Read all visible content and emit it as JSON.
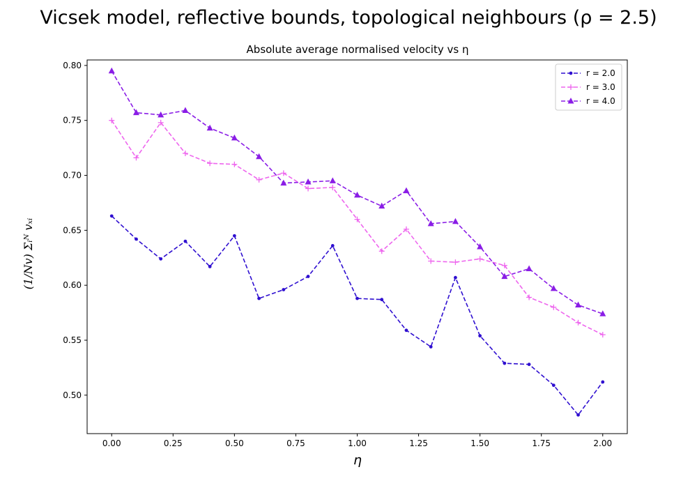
{
  "suptitle": "Vicsek model, reflective bounds, topological neighbours (ρ = 2.5)",
  "chart_data": {
    "type": "line",
    "title": "Absolute average normalised velocity vs η",
    "xlabel": "η",
    "ylabel": "(1/Nv) Σᵢᴺ vₓᵢ",
    "xlim": [
      -0.1,
      2.1
    ],
    "ylim": [
      0.465,
      0.805
    ],
    "xticks": [
      "0.00",
      "0.25",
      "0.50",
      "0.75",
      "1.00",
      "1.25",
      "1.50",
      "1.75",
      "2.00"
    ],
    "yticks": [
      "0.50",
      "0.55",
      "0.60",
      "0.65",
      "0.70",
      "0.75",
      "0.80"
    ],
    "grid": false,
    "legend_position": "top-right",
    "x": [
      0.0,
      0.1,
      0.2,
      0.3,
      0.4,
      0.5,
      0.6,
      0.7,
      0.8,
      0.9,
      1.0,
      1.1,
      1.2,
      1.3,
      1.4,
      1.5,
      1.6,
      1.7,
      1.8,
      1.9,
      2.0
    ],
    "series": [
      {
        "name": "r = 2.0",
        "color": "#2f0fd0",
        "marker": "dot",
        "values": [
          0.663,
          0.642,
          0.624,
          0.64,
          0.617,
          0.645,
          0.588,
          0.596,
          0.608,
          0.636,
          0.588,
          0.587,
          0.559,
          0.544,
          0.607,
          0.554,
          0.529,
          0.528,
          0.509,
          0.482,
          0.512
        ]
      },
      {
        "name": "r = 3.0",
        "color": "#ee66ee",
        "marker": "plus",
        "values": [
          0.75,
          0.716,
          0.748,
          0.72,
          0.711,
          0.71,
          0.696,
          0.702,
          0.688,
          0.689,
          0.66,
          0.631,
          0.651,
          0.622,
          0.621,
          0.624,
          0.618,
          0.589,
          0.58,
          0.566,
          0.555
        ]
      },
      {
        "name": "r = 4.0",
        "color": "#8a1de6",
        "marker": "triangle",
        "values": [
          0.795,
          0.757,
          0.755,
          0.759,
          0.743,
          0.734,
          0.717,
          0.693,
          0.694,
          0.695,
          0.682,
          0.672,
          0.686,
          0.656,
          0.658,
          0.635,
          0.608,
          0.615,
          0.597,
          0.582,
          0.574
        ]
      }
    ]
  }
}
